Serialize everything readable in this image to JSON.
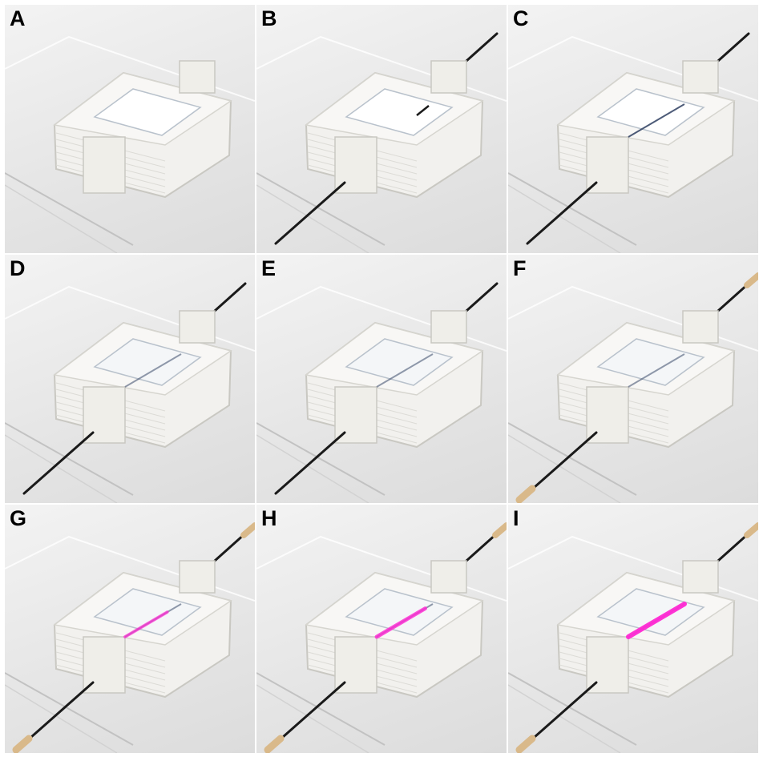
{
  "panels": [
    {
      "label": "A",
      "wire": "none",
      "tubing": false,
      "fill": 0,
      "glow": 0
    },
    {
      "label": "B",
      "wire": "partial",
      "tubing": false,
      "fill": 0,
      "glow": 0
    },
    {
      "label": "C",
      "wire": "full",
      "tubing": false,
      "fill": 0,
      "glow": 0
    },
    {
      "label": "D",
      "wire": "full",
      "tubing": false,
      "fill": 1,
      "glow": 0
    },
    {
      "label": "E",
      "wire": "full",
      "tubing": false,
      "fill": 1,
      "glow": 0
    },
    {
      "label": "F",
      "wire": "full",
      "tubing": true,
      "fill": 1,
      "glow": 0
    },
    {
      "label": "G",
      "wire": "full",
      "tubing": true,
      "fill": 1,
      "glow": 0.45
    },
    {
      "label": "H",
      "wire": "full",
      "tubing": true,
      "fill": 1,
      "glow": 0.7
    },
    {
      "label": "I",
      "wire": "full",
      "tubing": true,
      "fill": 1,
      "glow": 1
    }
  ],
  "colors": {
    "background": "#e9e9e9",
    "chamber": "#f2f1ee",
    "chamber_edge": "#c9c8c2",
    "wire": "#1a1a1a",
    "tubing": "#d9b98a",
    "glow": "#ff2ad4"
  }
}
